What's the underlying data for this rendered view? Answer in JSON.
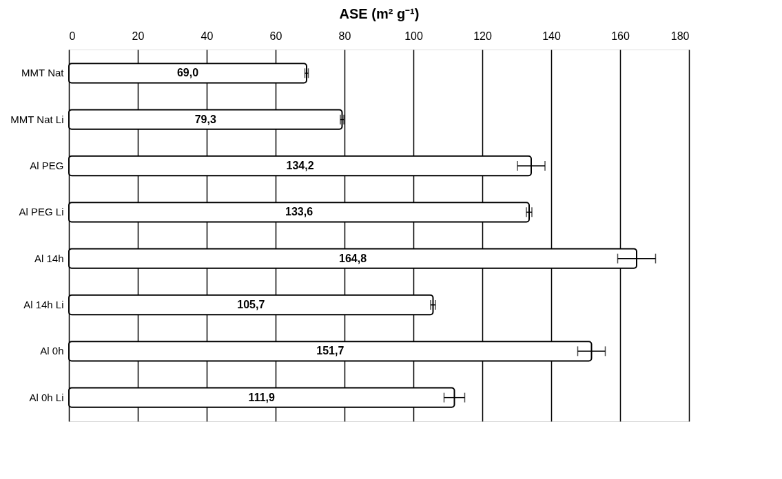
{
  "chart_data": {
    "type": "bar",
    "orientation": "horizontal",
    "xlabel": "ASE (m² g⁻¹)",
    "categories": [
      "MMT Nat",
      "MMT Nat  Li",
      "Al PEG",
      "Al PEG Li",
      "Al 14h",
      "Al 14h Li",
      "Al 0h",
      "Al 0h Li"
    ],
    "values": [
      69.0,
      79.3,
      134.2,
      133.6,
      164.8,
      105.7,
      151.7,
      111.9
    ],
    "value_labels": [
      "69,0",
      "79,3",
      "134,2",
      "133,6",
      "164,8",
      "105,7",
      "151,7",
      "111,9"
    ],
    "errors": [
      0.5,
      0.5,
      4,
      0.8,
      5.5,
      0.7,
      4,
      3
    ],
    "color": "#ffffff",
    "xlim": [
      0,
      180
    ],
    "xticks": [
      0,
      20,
      40,
      60,
      80,
      100,
      120,
      140,
      160,
      180
    ],
    "grid": "x"
  }
}
